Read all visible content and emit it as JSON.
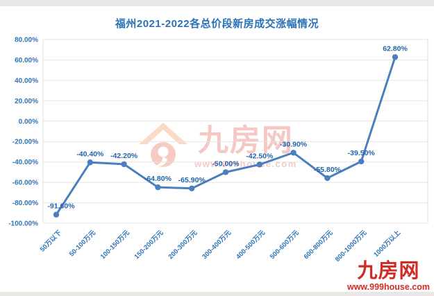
{
  "page": {
    "background": "#ffffff",
    "border_strip_color": "#e9e8e5"
  },
  "chart_data": {
    "type": "line",
    "title": "福州2021-2022各总价段新房成交涨幅情况",
    "categories": [
      "50万以下",
      "50-100万元",
      "100-150万元",
      "150-200万元",
      "200-300万元",
      "300-400万元",
      "400-500万元",
      "500-600万元",
      "600-800万元",
      "800-1000万元",
      "1000万以上"
    ],
    "values": [
      -91.6,
      -40.4,
      -42.2,
      -64.8,
      -65.9,
      -50.0,
      -42.5,
      -30.9,
      -55.8,
      -39.5,
      62.8
    ],
    "value_labels": [
      "-91.60%",
      "-40.40%",
      "-42.20%",
      "-64.80%",
      "-65.90%",
      "-50.00%",
      "-42.50%",
      "-30.90%",
      "-55.80%",
      "-39.50%",
      "62.80%"
    ],
    "y_ticks": [
      "80.00%",
      "60.00%",
      "40.00%",
      "20.00%",
      "0.00%",
      "-20.00%",
      "-40.00%",
      "-60.00%",
      "-80.00%",
      "-100.00%"
    ],
    "ylim": [
      -100,
      80
    ],
    "xlabel": "",
    "ylabel": "",
    "grid": true,
    "legend": "none",
    "series_color": "#4a7ebe",
    "data_label_color": "#2463ac",
    "axis_label_color": "#2e74b5",
    "gridline_color": "#e4e4e4",
    "title_color": "#2b71b8"
  },
  "watermark": {
    "brand": "九房网",
    "url": "www.999house.com",
    "color": "#e0564a"
  },
  "logo": {
    "brand": "九房网",
    "url": "www.999house.com",
    "color": "#d12b26"
  }
}
